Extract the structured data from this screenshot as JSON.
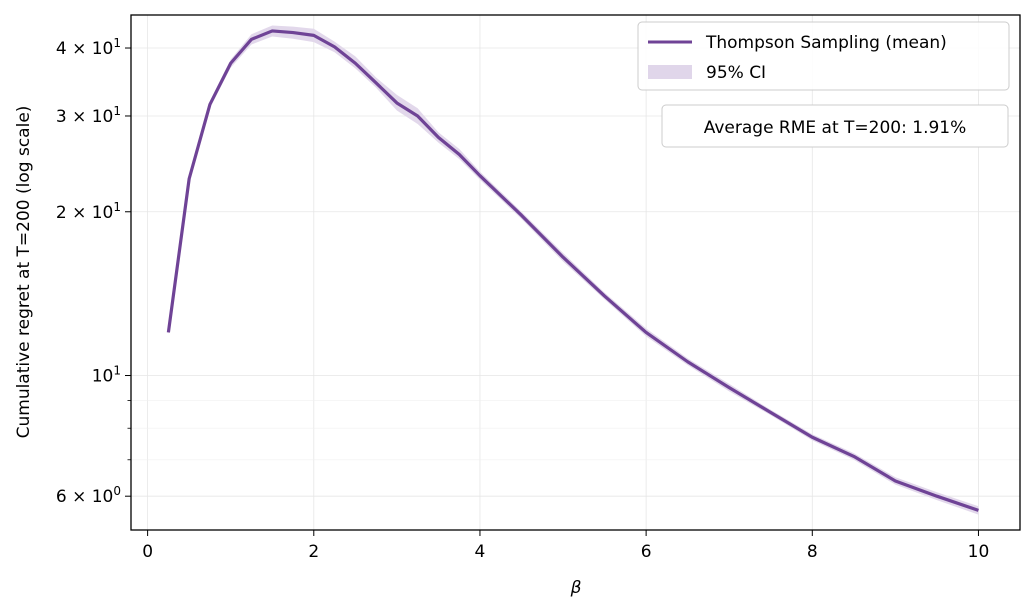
{
  "chart_data": {
    "type": "line",
    "title": "",
    "xlabel": "β",
    "ylabel": "Cumulative regret at T=200 (log scale)",
    "xlim": [
      -0.2,
      10.5
    ],
    "ylim": [
      5.2,
      46
    ],
    "yscale": "log",
    "grid": true,
    "legend_position": "top-right",
    "x_ticks": [
      0,
      2,
      4,
      6,
      8,
      10
    ],
    "x_tick_labels": [
      "0",
      "2",
      "4",
      "6",
      "8",
      "10"
    ],
    "y_major_ticks": [
      {
        "value": 6,
        "label": "6 × 10^0"
      },
      {
        "value": 10,
        "label": "10^1"
      },
      {
        "value": 20,
        "label": "2 × 10^1"
      },
      {
        "value": 30,
        "label": "3 × 10^1"
      },
      {
        "value": 40,
        "label": "4 × 10^1"
      }
    ],
    "y_minor_ticks": [
      7,
      8,
      9
    ],
    "series": [
      {
        "name": "Thompson Sampling (mean)",
        "color": "#6f4396",
        "x": [
          0.25,
          0.5,
          0.75,
          1.0,
          1.25,
          1.5,
          1.75,
          2.0,
          2.25,
          2.5,
          2.75,
          3.0,
          3.25,
          3.5,
          3.75,
          4.0,
          4.5,
          5.0,
          5.5,
          6.0,
          6.5,
          7.0,
          7.5,
          8.0,
          8.5,
          9.0,
          9.5,
          10.0
        ],
        "y": [
          12.0,
          23.0,
          31.5,
          37.5,
          41.5,
          43.0,
          42.7,
          42.2,
          40.2,
          37.5,
          34.5,
          31.7,
          30.0,
          27.4,
          25.5,
          23.3,
          19.7,
          16.5,
          14.0,
          12.0,
          10.6,
          9.5,
          8.55,
          7.7,
          7.1,
          6.4,
          6.0,
          5.65
        ]
      }
    ],
    "ci": {
      "name": "95% CI",
      "color": "#e0d6ea",
      "lower": [
        11.9,
        22.6,
        31.1,
        36.8,
        40.6,
        42.0,
        41.6,
        41.0,
        39.3,
        36.7,
        33.8,
        30.7,
        29.0,
        26.8,
        25.0,
        22.9,
        19.4,
        16.2,
        13.8,
        11.8,
        10.45,
        9.35,
        8.45,
        7.6,
        7.0,
        6.3,
        5.9,
        5.55
      ],
      "upper": [
        12.1,
        23.4,
        31.9,
        38.1,
        42.4,
        44.0,
        43.8,
        43.4,
        41.1,
        38.6,
        35.3,
        32.8,
        31.0,
        28.0,
        26.1,
        23.7,
        20.0,
        16.8,
        14.2,
        12.2,
        10.75,
        9.65,
        8.65,
        7.8,
        7.2,
        6.5,
        6.1,
        5.75
      ]
    },
    "annotation": "Average RME at T=200: 1.91%"
  }
}
